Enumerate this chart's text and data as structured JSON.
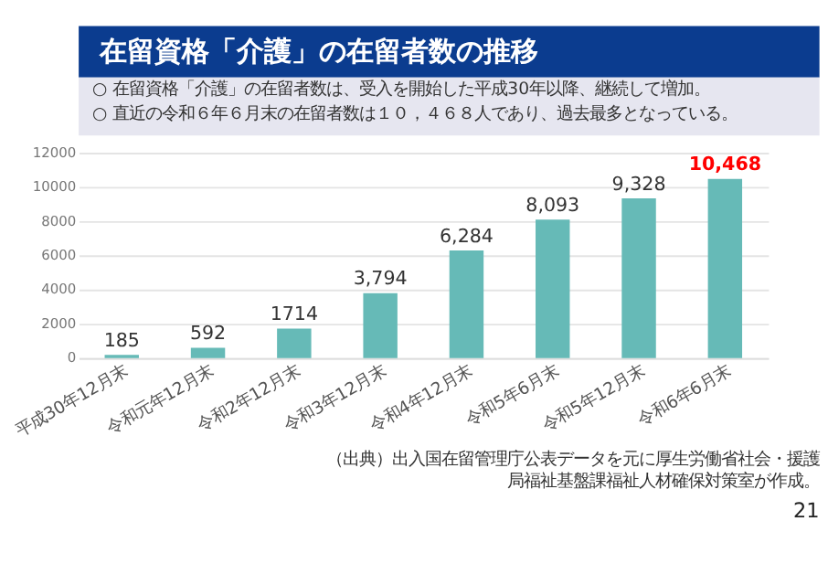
{
  "chart_data": {
    "type": "bar",
    "title": "在留資格「介護」の在留者数の推移",
    "subtitle": [
      "○ 在留資格「介護」の在留者数は、受入を開始した平成30年以降、継続して増加。",
      "○ 直近の令和６年６月末の在留者数は１０，４６８人であり、過去最多となっている。"
    ],
    "categories": [
      "平成30年12月末",
      "令和元年12月末",
      "令和2年12月末",
      "令和3年12月末",
      "令和4年12月末",
      "令和5年6月末",
      "令和5年12月末",
      "令和6年6月末"
    ],
    "values": [
      185,
      592,
      1714,
      3794,
      6284,
      8093,
      9328,
      10468
    ],
    "value_labels": [
      "185",
      "592",
      "1714",
      "3,794",
      "6,284",
      "8,093",
      "9,328",
      "10,468"
    ],
    "color": "#66bab7",
    "ylim": [
      0,
      12000
    ],
    "yticks": [
      0,
      2000,
      4000,
      6000,
      8000,
      10000,
      12000
    ],
    "grid": "y",
    "annotations": [
      "（出典）出入国在留管理庁公表データを元に厚生労働省社会・援護局福祉基盤課福祉人材確保対策室が作成。",
      "21"
    ]
  }
}
